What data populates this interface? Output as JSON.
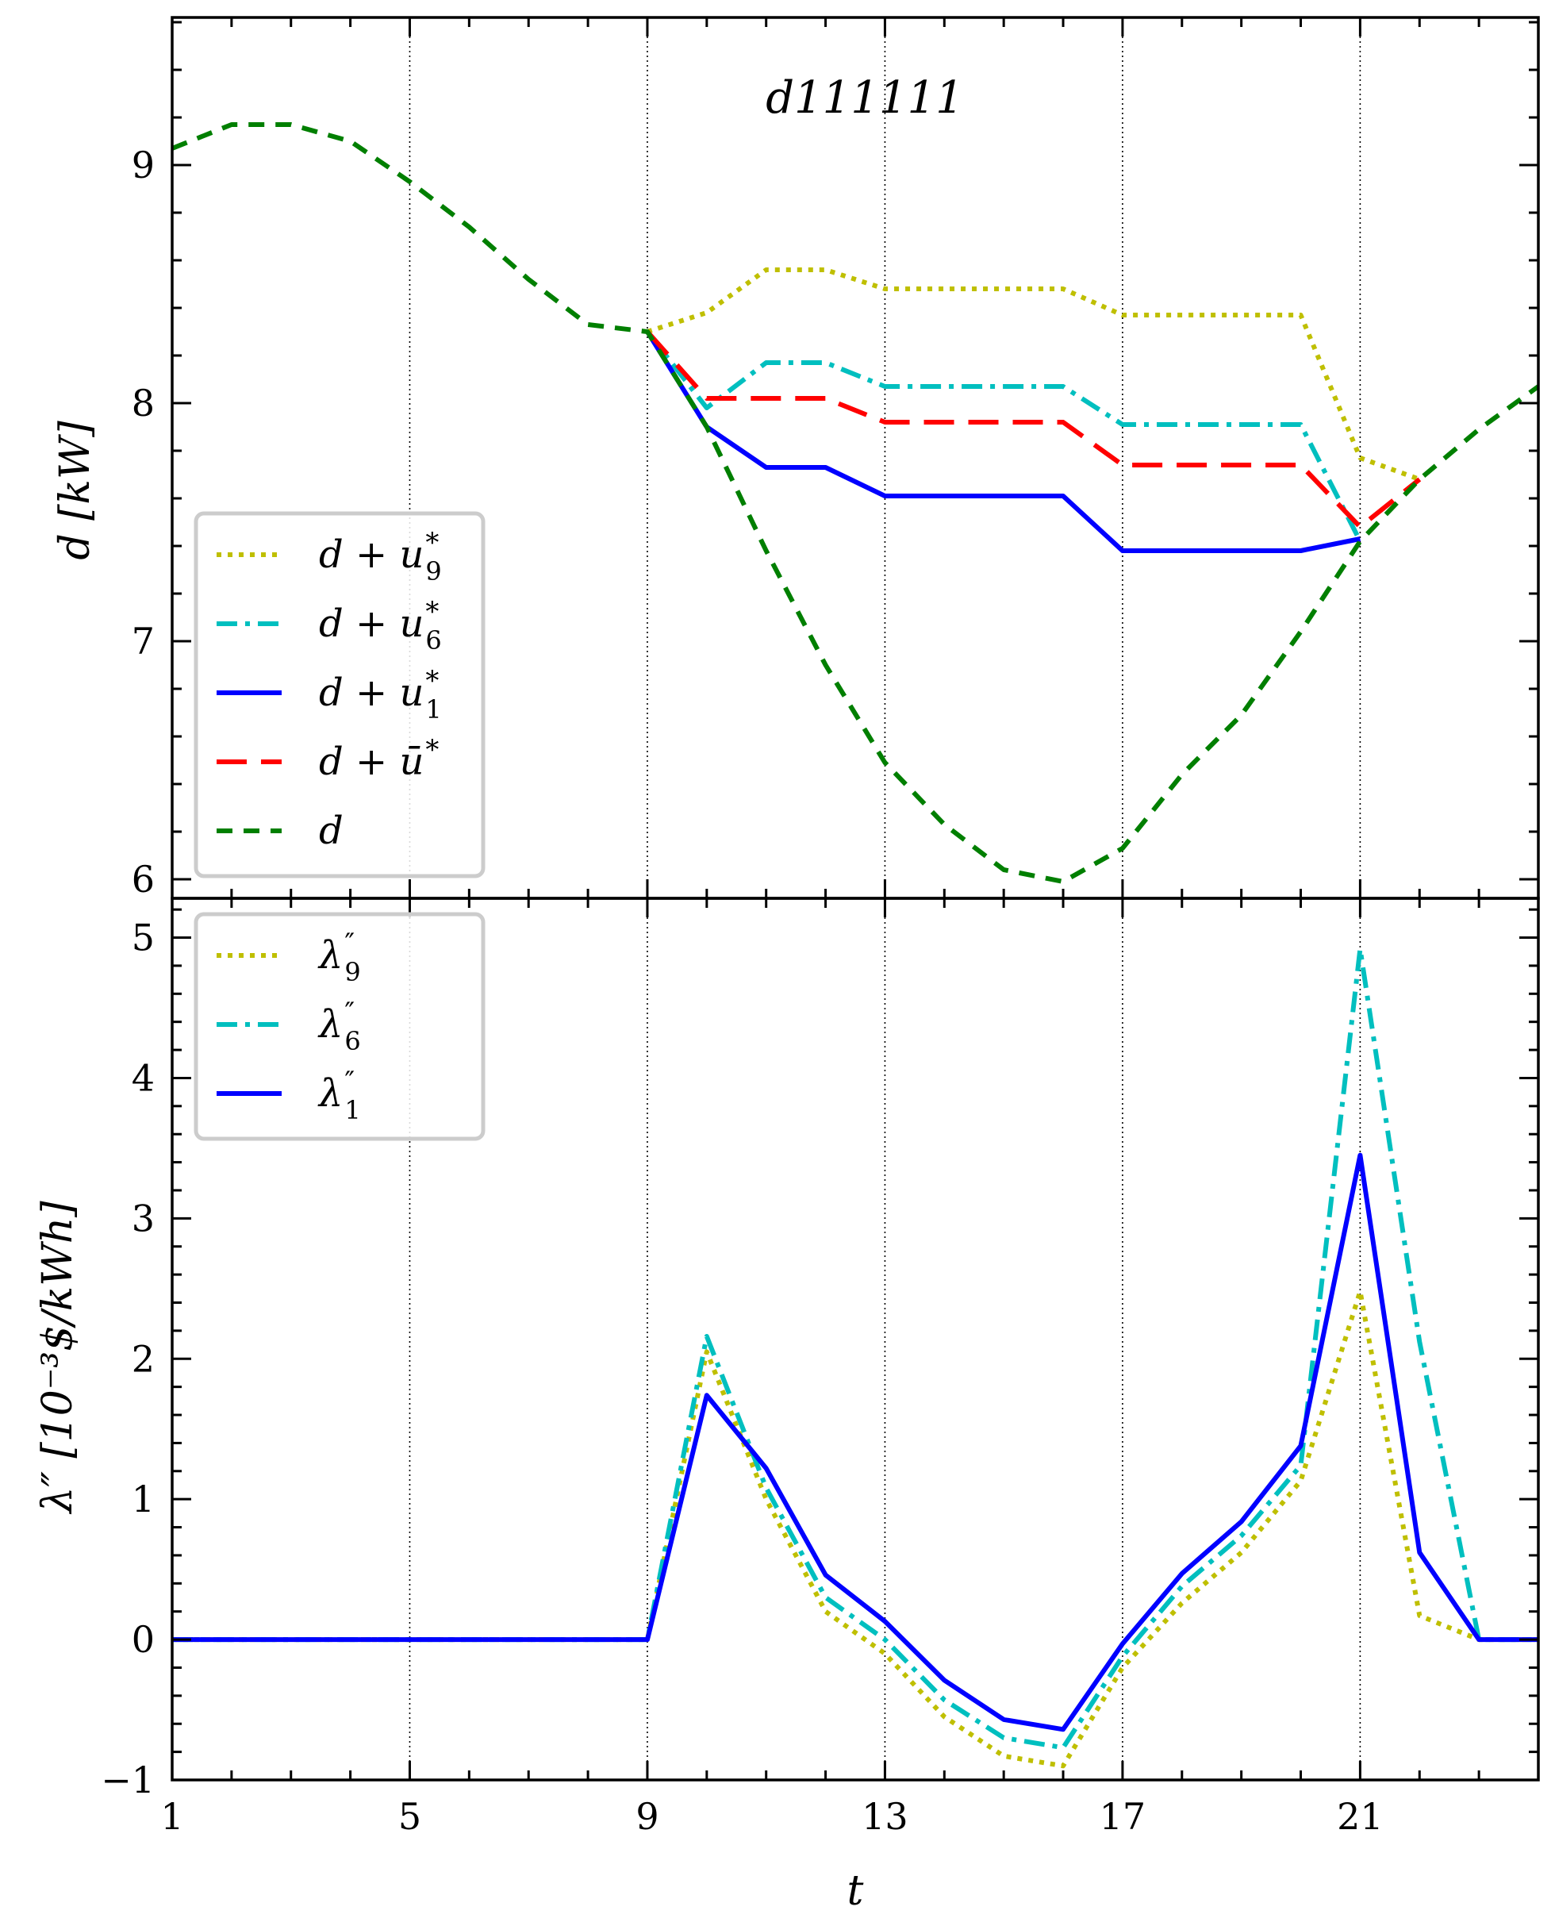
{
  "chart_data": [
    {
      "type": "line",
      "title": "d111111",
      "xlabel": "",
      "ylabel": "d [kW]",
      "xlim": [
        1,
        24
      ],
      "ylim": [
        5.92,
        9.62
      ],
      "xticks": [
        1,
        5,
        9,
        13,
        17,
        21
      ],
      "yticks": [
        6,
        7,
        8,
        9
      ],
      "tick_labels_x": [
        "1",
        "5",
        "9",
        "13",
        "17",
        "21"
      ],
      "tick_labels_y": [
        "6",
        "7",
        "8",
        "9"
      ],
      "vlines": [
        5,
        9,
        13,
        17,
        21
      ],
      "legend_position": "lower-left",
      "series": [
        {
          "name": "d + u9*",
          "label": "d + u",
          "sub": "9",
          "sup": "*",
          "color": "#bfbf00",
          "dash": "dotted",
          "x": [
            9,
            10,
            11,
            12,
            13,
            14,
            15,
            16,
            17,
            18,
            19,
            20,
            21,
            22
          ],
          "y": [
            8.3,
            8.38,
            8.56,
            8.56,
            8.48,
            8.48,
            8.48,
            8.48,
            8.37,
            8.37,
            8.37,
            8.37,
            7.77,
            7.68
          ]
        },
        {
          "name": "d + u6*",
          "label": "d + u",
          "sub": "6",
          "sup": "*",
          "color": "#00bfbf",
          "dash": "dashdot",
          "x": [
            9,
            10,
            11,
            12,
            13,
            14,
            15,
            16,
            17,
            18,
            19,
            20,
            21
          ],
          "y": [
            8.3,
            7.98,
            8.17,
            8.17,
            8.07,
            8.07,
            8.07,
            8.07,
            7.91,
            7.91,
            7.91,
            7.91,
            7.42
          ]
        },
        {
          "name": "d + u1*",
          "label": "d + u",
          "sub": "1",
          "sup": "*",
          "color": "#0000ff",
          "dash": "solid",
          "x": [
            9,
            10,
            11,
            12,
            13,
            14,
            15,
            16,
            17,
            18,
            19,
            20,
            21
          ],
          "y": [
            8.3,
            7.9,
            7.73,
            7.73,
            7.61,
            7.61,
            7.61,
            7.61,
            7.38,
            7.38,
            7.38,
            7.38,
            7.43
          ]
        },
        {
          "name": "d + ū*",
          "label": "d + ū",
          "sub": "",
          "sup": "*",
          "color": "#ff0000",
          "dash": "longdash",
          "x": [
            9,
            10,
            11,
            12,
            13,
            14,
            15,
            16,
            17,
            18,
            19,
            20,
            21,
            22
          ],
          "y": [
            8.3,
            8.02,
            8.02,
            8.02,
            7.92,
            7.92,
            7.92,
            7.92,
            7.74,
            7.74,
            7.74,
            7.74,
            7.48,
            7.68
          ]
        },
        {
          "name": "d",
          "label": "d",
          "sub": "",
          "sup": "",
          "color": "#007f00",
          "dash": "dashed",
          "x": [
            1,
            2,
            3,
            4,
            5,
            6,
            7,
            8,
            9,
            10,
            11,
            12,
            13,
            14,
            15,
            16,
            17,
            18,
            19,
            20,
            21,
            22,
            23,
            24
          ],
          "y": [
            9.07,
            9.17,
            9.17,
            9.1,
            8.93,
            8.74,
            8.52,
            8.33,
            8.3,
            7.9,
            7.38,
            6.9,
            6.49,
            6.23,
            6.04,
            5.99,
            6.13,
            6.44,
            6.69,
            7.04,
            7.42,
            7.68,
            7.89,
            8.07
          ]
        }
      ]
    },
    {
      "type": "line",
      "title": "",
      "xlabel": "t",
      "ylabel": "λ″ [10⁻³$/kWh]",
      "xlim": [
        1,
        24
      ],
      "ylim": [
        -1,
        5.28
      ],
      "xticks": [
        1,
        5,
        9,
        13,
        17,
        21
      ],
      "yticks": [
        -1,
        0,
        1,
        2,
        3,
        4,
        5
      ],
      "tick_labels_x": [
        "1",
        "5",
        "9",
        "13",
        "17",
        "21"
      ],
      "tick_labels_y": [
        "−1",
        "0",
        "1",
        "2",
        "3",
        "4",
        "5"
      ],
      "vlines": [
        5,
        9,
        13,
        17,
        21
      ],
      "legend_position": "top-left",
      "series": [
        {
          "name": "λ9″",
          "label": "λ",
          "sub": "9",
          "sup": "″",
          "color": "#bfbf00",
          "dash": "dotted",
          "x": [
            1,
            2,
            3,
            4,
            5,
            6,
            7,
            8,
            9,
            10,
            11,
            12,
            13,
            14,
            15,
            16,
            17,
            18,
            19,
            20,
            21,
            22,
            23,
            24
          ],
          "y": [
            0,
            0,
            0,
            0,
            0,
            0,
            0,
            0,
            0,
            2.05,
            1.0,
            0.2,
            -0.1,
            -0.55,
            -0.83,
            -0.9,
            -0.2,
            0.26,
            0.62,
            1.13,
            2.48,
            0.17,
            0.0,
            0.0
          ]
        },
        {
          "name": "λ6″",
          "label": "λ",
          "sub": "6",
          "sup": "″",
          "color": "#00bfbf",
          "dash": "dashdot",
          "x": [
            1,
            2,
            3,
            4,
            5,
            6,
            7,
            8,
            9,
            10,
            11,
            12,
            13,
            14,
            15,
            16,
            17,
            18,
            19,
            20,
            21,
            22,
            23,
            24
          ],
          "y": [
            0,
            0,
            0,
            0,
            0,
            0,
            0,
            0,
            0,
            2.16,
            1.08,
            0.3,
            0.0,
            -0.43,
            -0.7,
            -0.77,
            -0.12,
            0.38,
            0.74,
            1.24,
            4.92,
            2.12,
            0.0,
            0.0
          ]
        },
        {
          "name": "λ1″",
          "label": "λ",
          "sub": "1",
          "sup": "″",
          "color": "#0000ff",
          "dash": "solid",
          "x": [
            1,
            2,
            3,
            4,
            5,
            6,
            7,
            8,
            9,
            10,
            11,
            12,
            13,
            14,
            15,
            16,
            17,
            18,
            19,
            20,
            21,
            22,
            23,
            24
          ],
          "y": [
            0,
            0,
            0,
            0,
            0,
            0,
            0,
            0,
            0,
            1.74,
            1.22,
            0.46,
            0.13,
            -0.29,
            -0.57,
            -0.64,
            -0.03,
            0.47,
            0.84,
            1.38,
            3.45,
            0.62,
            0.0,
            0.0
          ]
        }
      ]
    }
  ]
}
